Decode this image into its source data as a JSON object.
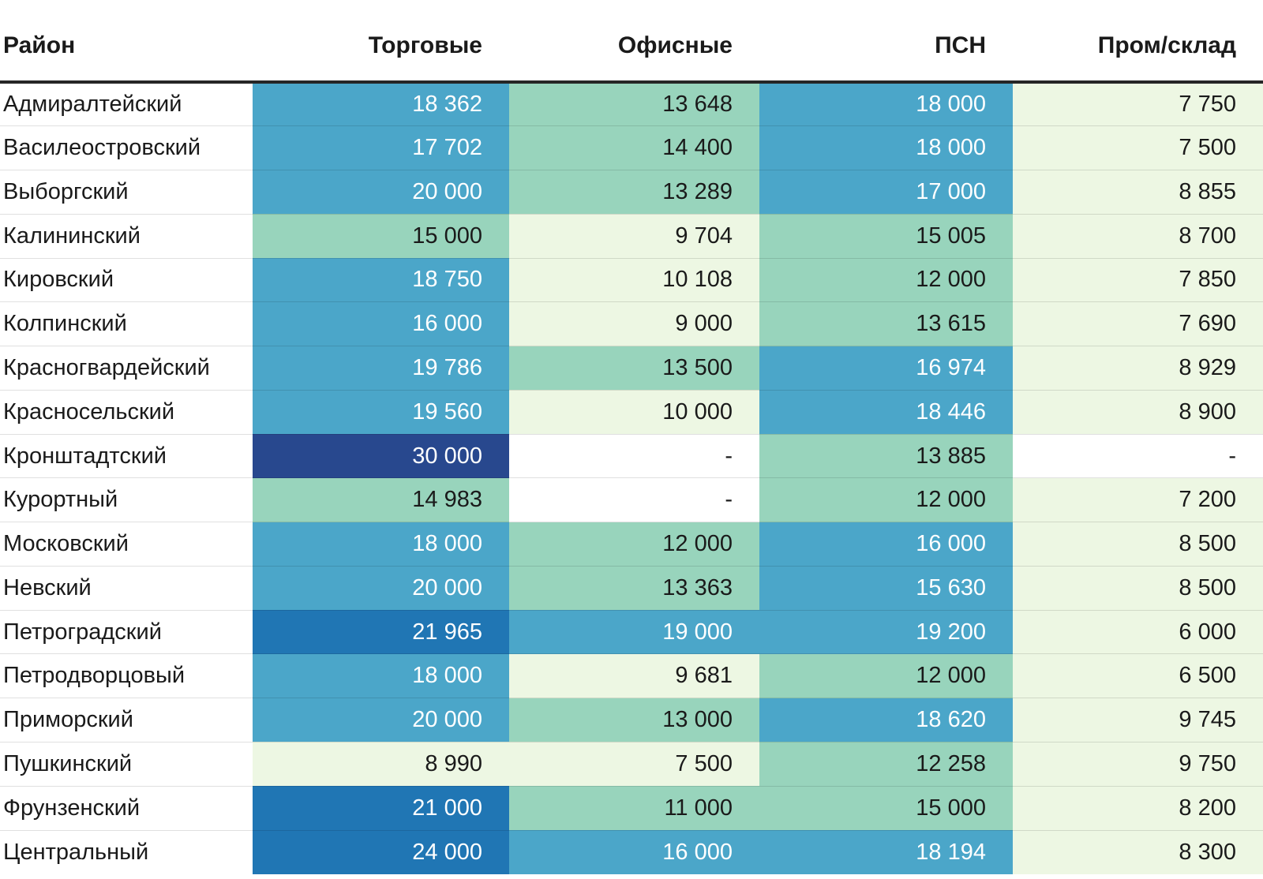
{
  "palette": {
    "cell_none": "#ffffff",
    "cell_low": "#edf7e3",
    "cell_mid": "#98d4bc",
    "cell_high": "#4ba6c9",
    "cell_higher": "#2076b4",
    "cell_max": "#28488e",
    "header_rule": "#262626",
    "text_dark": "#1a1a1a",
    "text_light": "#ffffff"
  },
  "table": {
    "columns": [
      {
        "key": "district",
        "label": "Район"
      },
      {
        "key": "retail",
        "label": "Торговые"
      },
      {
        "key": "office",
        "label": "Офисные"
      },
      {
        "key": "psn",
        "label": "ПСН"
      },
      {
        "key": "industrial",
        "label": "Пром/склад"
      }
    ],
    "rows": [
      {
        "district": "Адмиралтейский",
        "cells": [
          {
            "v": "18 362",
            "heat": "blue"
          },
          {
            "v": "13 648",
            "heat": "green"
          },
          {
            "v": "18 000",
            "heat": "blue"
          },
          {
            "v": "7 750",
            "heat": "light"
          }
        ]
      },
      {
        "district": "Василеостровский",
        "cells": [
          {
            "v": "17 702",
            "heat": "blue"
          },
          {
            "v": "14 400",
            "heat": "green"
          },
          {
            "v": "18 000",
            "heat": "blue"
          },
          {
            "v": "7 500",
            "heat": "light"
          }
        ]
      },
      {
        "district": "Выборгский",
        "cells": [
          {
            "v": "20 000",
            "heat": "blue"
          },
          {
            "v": "13 289",
            "heat": "green"
          },
          {
            "v": "17 000",
            "heat": "blue"
          },
          {
            "v": "8 855",
            "heat": "light"
          }
        ]
      },
      {
        "district": "Калининский",
        "cells": [
          {
            "v": "15 000",
            "heat": "green"
          },
          {
            "v": "9 704",
            "heat": "light"
          },
          {
            "v": "15 005",
            "heat": "green"
          },
          {
            "v": "8 700",
            "heat": "light"
          }
        ]
      },
      {
        "district": "Кировский",
        "cells": [
          {
            "v": "18 750",
            "heat": "blue"
          },
          {
            "v": "10 108",
            "heat": "light"
          },
          {
            "v": "12 000",
            "heat": "green"
          },
          {
            "v": "7 850",
            "heat": "light"
          }
        ]
      },
      {
        "district": "Колпинский",
        "cells": [
          {
            "v": "16 000",
            "heat": "blue"
          },
          {
            "v": "9 000",
            "heat": "light"
          },
          {
            "v": "13 615",
            "heat": "green"
          },
          {
            "v": "7 690",
            "heat": "light"
          }
        ]
      },
      {
        "district": "Красногвардейский",
        "cells": [
          {
            "v": "19 786",
            "heat": "blue"
          },
          {
            "v": "13 500",
            "heat": "green"
          },
          {
            "v": "16 974",
            "heat": "blue"
          },
          {
            "v": "8 929",
            "heat": "light"
          }
        ]
      },
      {
        "district": "Красносельский",
        "cells": [
          {
            "v": "19 560",
            "heat": "blue"
          },
          {
            "v": "10 000",
            "heat": "light"
          },
          {
            "v": "18 446",
            "heat": "blue"
          },
          {
            "v": "8 900",
            "heat": "light"
          }
        ]
      },
      {
        "district": "Кронштадтский",
        "cells": [
          {
            "v": "30 000",
            "heat": "navy"
          },
          {
            "v": "-",
            "heat": "white"
          },
          {
            "v": "13 885",
            "heat": "green"
          },
          {
            "v": "-",
            "heat": "white"
          }
        ]
      },
      {
        "district": "Курортный",
        "cells": [
          {
            "v": "14 983",
            "heat": "green"
          },
          {
            "v": "-",
            "heat": "white"
          },
          {
            "v": "12 000",
            "heat": "green"
          },
          {
            "v": "7 200",
            "heat": "light"
          }
        ]
      },
      {
        "district": "Московский",
        "cells": [
          {
            "v": "18 000",
            "heat": "blue"
          },
          {
            "v": "12 000",
            "heat": "green"
          },
          {
            "v": "16 000",
            "heat": "blue"
          },
          {
            "v": "8 500",
            "heat": "light"
          }
        ]
      },
      {
        "district": "Невский",
        "cells": [
          {
            "v": "20 000",
            "heat": "blue"
          },
          {
            "v": "13 363",
            "heat": "green"
          },
          {
            "v": "15 630",
            "heat": "blue"
          },
          {
            "v": "8 500",
            "heat": "light"
          }
        ]
      },
      {
        "district": "Петроградский",
        "cells": [
          {
            "v": "21 965",
            "heat": "dark"
          },
          {
            "v": "19 000",
            "heat": "blue"
          },
          {
            "v": "19 200",
            "heat": "blue"
          },
          {
            "v": "6 000",
            "heat": "light"
          }
        ]
      },
      {
        "district": "Петродворцовый",
        "cells": [
          {
            "v": "18 000",
            "heat": "blue"
          },
          {
            "v": "9 681",
            "heat": "light"
          },
          {
            "v": "12 000",
            "heat": "green"
          },
          {
            "v": "6 500",
            "heat": "light"
          }
        ]
      },
      {
        "district": "Приморский",
        "cells": [
          {
            "v": "20 000",
            "heat": "blue"
          },
          {
            "v": "13 000",
            "heat": "green"
          },
          {
            "v": "18 620",
            "heat": "blue"
          },
          {
            "v": "9 745",
            "heat": "light"
          }
        ]
      },
      {
        "district": "Пушкинский",
        "cells": [
          {
            "v": "8 990",
            "heat": "light"
          },
          {
            "v": "7 500",
            "heat": "light"
          },
          {
            "v": "12 258",
            "heat": "green"
          },
          {
            "v": "9 750",
            "heat": "light"
          }
        ]
      },
      {
        "district": "Фрунзенский",
        "cells": [
          {
            "v": "21 000",
            "heat": "dark"
          },
          {
            "v": "11 000",
            "heat": "green"
          },
          {
            "v": "15 000",
            "heat": "green"
          },
          {
            "v": "8 200",
            "heat": "light"
          }
        ]
      },
      {
        "district": "Центральный",
        "cells": [
          {
            "v": "24 000",
            "heat": "dark"
          },
          {
            "v": "16 000",
            "heat": "blue"
          },
          {
            "v": "18 194",
            "heat": "blue"
          },
          {
            "v": "8 300",
            "heat": "light"
          }
        ]
      }
    ]
  },
  "chart_data": {
    "type": "heatmap",
    "columns": [
      "Торговые",
      "Офисные",
      "ПСН",
      "Пром/склад"
    ],
    "rows": [
      "Адмиралтейский",
      "Василеостровский",
      "Выборгский",
      "Калининский",
      "Кировский",
      "Колпинский",
      "Красногвардейский",
      "Красносельский",
      "Кронштадтский",
      "Курортный",
      "Московский",
      "Невский",
      "Петроградский",
      "Петродворцовый",
      "Приморский",
      "Пушкинский",
      "Фрунзенский",
      "Центральный"
    ],
    "values": [
      [
        18362,
        13648,
        18000,
        7750
      ],
      [
        17702,
        14400,
        18000,
        7500
      ],
      [
        20000,
        13289,
        17000,
        8855
      ],
      [
        15000,
        9704,
        15005,
        8700
      ],
      [
        18750,
        10108,
        12000,
        7850
      ],
      [
        16000,
        9000,
        13615,
        7690
      ],
      [
        19786,
        13500,
        16974,
        8929
      ],
      [
        19560,
        10000,
        18446,
        8900
      ],
      [
        30000,
        null,
        13885,
        null
      ],
      [
        14983,
        null,
        12000,
        7200
      ],
      [
        18000,
        12000,
        16000,
        8500
      ],
      [
        20000,
        13363,
        15630,
        8500
      ],
      [
        21965,
        19000,
        19200,
        6000
      ],
      [
        18000,
        9681,
        12000,
        6500
      ],
      [
        20000,
        13000,
        18620,
        9745
      ],
      [
        8990,
        7500,
        12258,
        9750
      ],
      [
        21000,
        11000,
        15000,
        8200
      ],
      [
        24000,
        16000,
        18194,
        8300
      ]
    ],
    "missing_marker": "-",
    "row_header_label": "Район",
    "color_scale": {
      "light": "#edf7e3",
      "green": "#98d4bc",
      "blue": "#4ba6c9",
      "dark": "#2076b4",
      "navy": "#28488e",
      "missing": "#ffffff"
    }
  }
}
